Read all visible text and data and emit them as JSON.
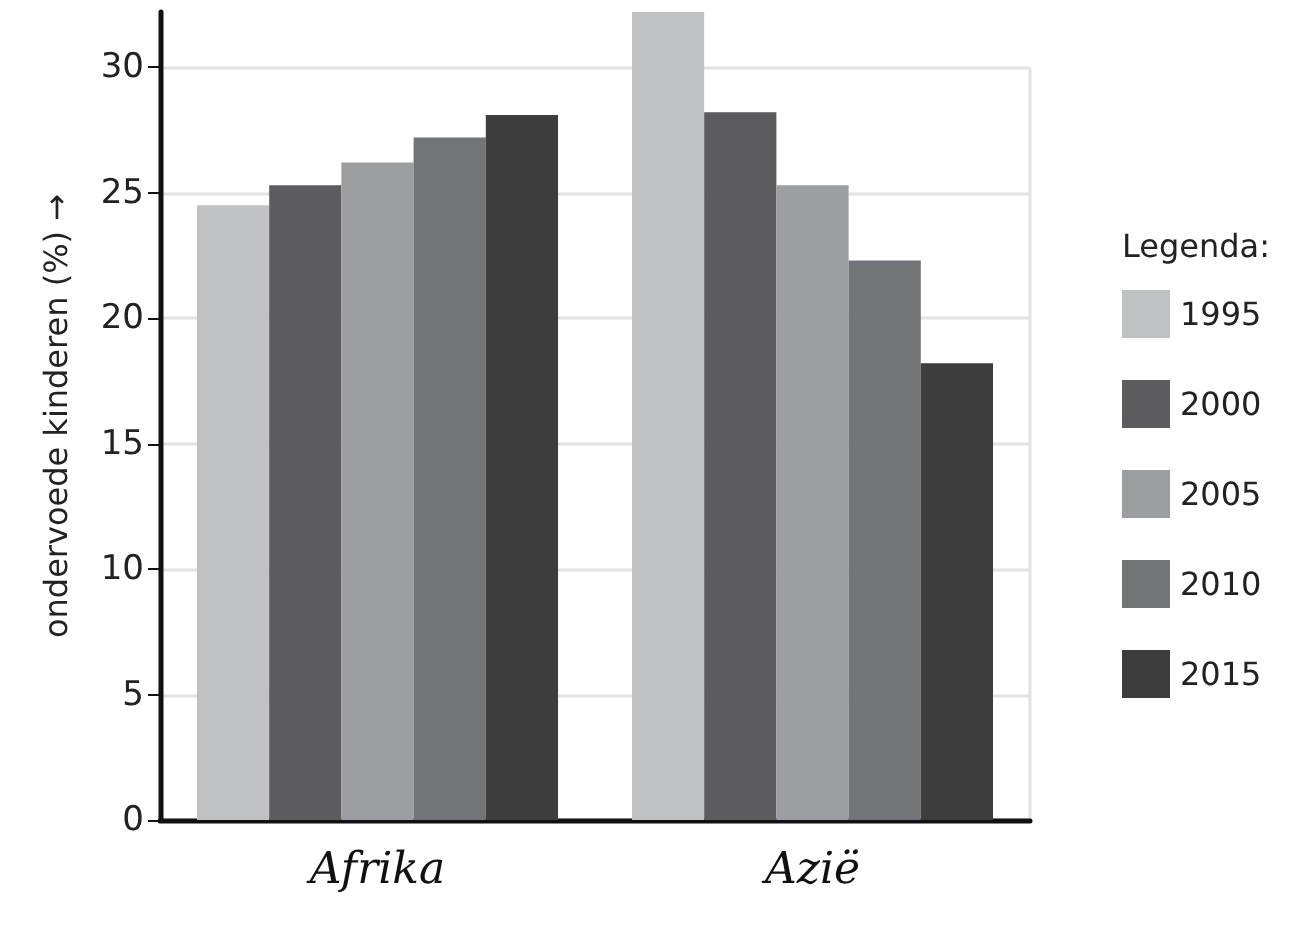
{
  "chart_data": {
    "type": "bar",
    "ylabel": "ondervoede kinderen (%) →",
    "legend_title": "Legenda:",
    "categories": [
      "Afrika",
      "Azië"
    ],
    "series": [
      {
        "name": "1995",
        "color": "#c0c1c3",
        "values": [
          24.5,
          32.2
        ]
      },
      {
        "name": "2000",
        "color": "#5c5c5e",
        "values": [
          25.3,
          28.2
        ]
      },
      {
        "name": "2005",
        "color": "#9d9ea1",
        "values": [
          26.2,
          25.3
        ]
      },
      {
        "name": "2010",
        "color": "#737478",
        "values": [
          27.2,
          22.3
        ]
      },
      {
        "name": "2015",
        "color": "#3d3d3d",
        "values": [
          28.1,
          18.2
        ]
      }
    ],
    "ylim": [
      0,
      32.2
    ],
    "yticks": [
      0,
      5,
      10,
      15,
      20,
      25,
      30
    ],
    "grid": "y",
    "legend": "right"
  }
}
